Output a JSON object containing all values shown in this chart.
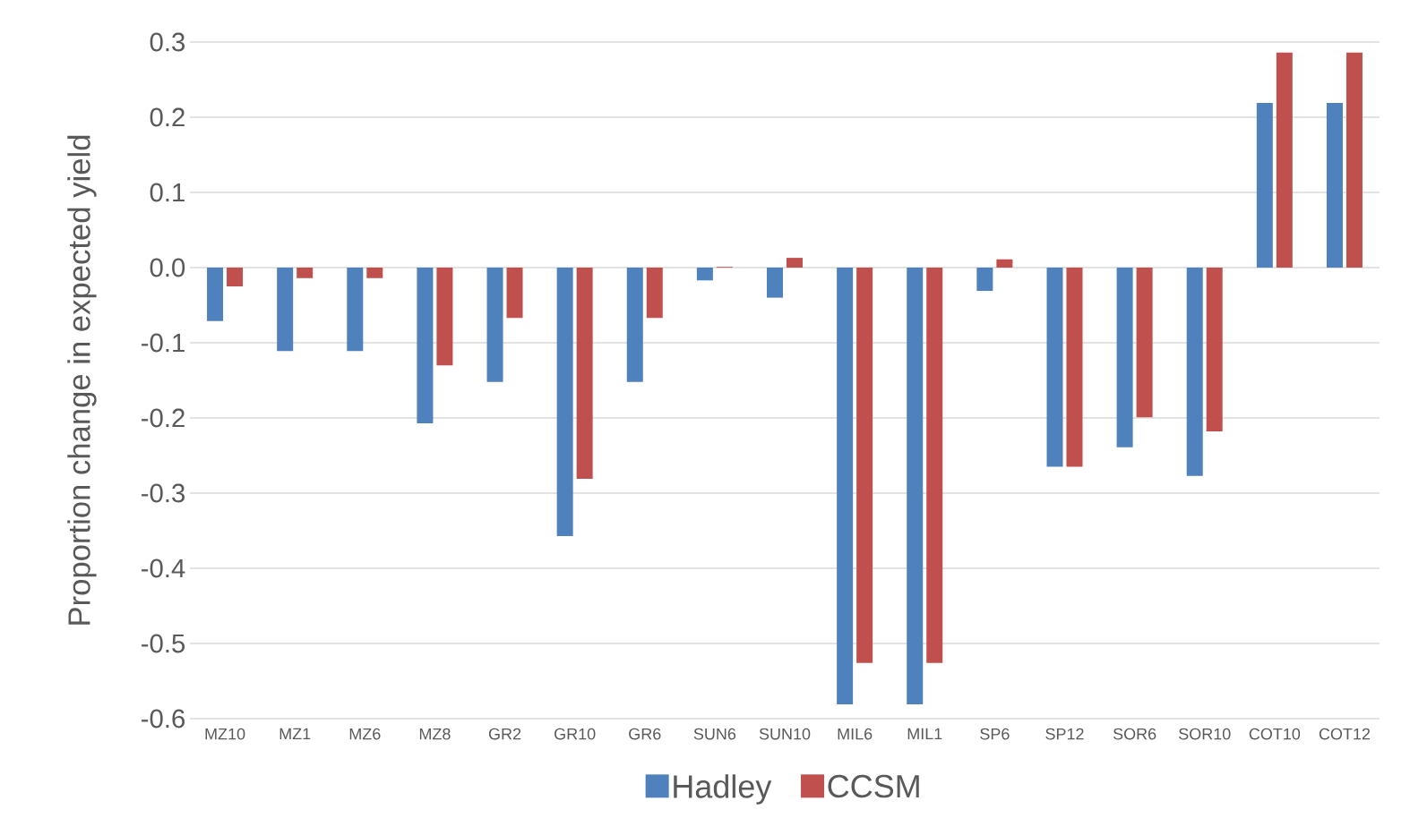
{
  "chart_data": {
    "type": "bar",
    "ylabel": "Proportion change in expected yield",
    "categories": [
      "MZ10",
      "MZ1",
      "MZ6",
      "MZ8",
      "GR2",
      "GR10",
      "GR6",
      "SUN6",
      "SUN10",
      "MIL6",
      "MIL1",
      "SP6",
      "SP12",
      "SOR6",
      "SOR10",
      "COT10",
      "COT12"
    ],
    "series": [
      {
        "name": "Hadley",
        "color": "#4f81bd",
        "values": [
          -0.071,
          -0.111,
          -0.111,
          -0.207,
          -0.152,
          -0.357,
          -0.152,
          -0.017,
          -0.04,
          -0.581,
          -0.581,
          -0.031,
          -0.265,
          -0.239,
          -0.277,
          0.219,
          0.219
        ]
      },
      {
        "name": "CCSM",
        "color": "#c0504d",
        "values": [
          -0.025,
          -0.014,
          -0.014,
          -0.13,
          -0.067,
          -0.281,
          -0.067,
          0.001,
          0.013,
          -0.526,
          -0.526,
          0.011,
          -0.265,
          -0.199,
          -0.218,
          0.286,
          0.286
        ]
      }
    ],
    "ylim": [
      -0.6,
      0.3
    ],
    "yticks": [
      {
        "value": -0.6,
        "label": "-0.6"
      },
      {
        "value": -0.5,
        "label": "-0.5"
      },
      {
        "value": -0.4,
        "label": "-0.4"
      },
      {
        "value": -0.3,
        "label": "-0.3"
      },
      {
        "value": -0.2,
        "label": "-0.2"
      },
      {
        "value": -0.1,
        "label": "-0.1"
      },
      {
        "value": 0,
        "label": "0.0"
      },
      {
        "value": 0.1,
        "label": "0.1"
      },
      {
        "value": 0.2,
        "label": "0.2"
      },
      {
        "value": 0.3,
        "label": "0.3"
      }
    ],
    "grid": "y",
    "legend": "bottom"
  }
}
